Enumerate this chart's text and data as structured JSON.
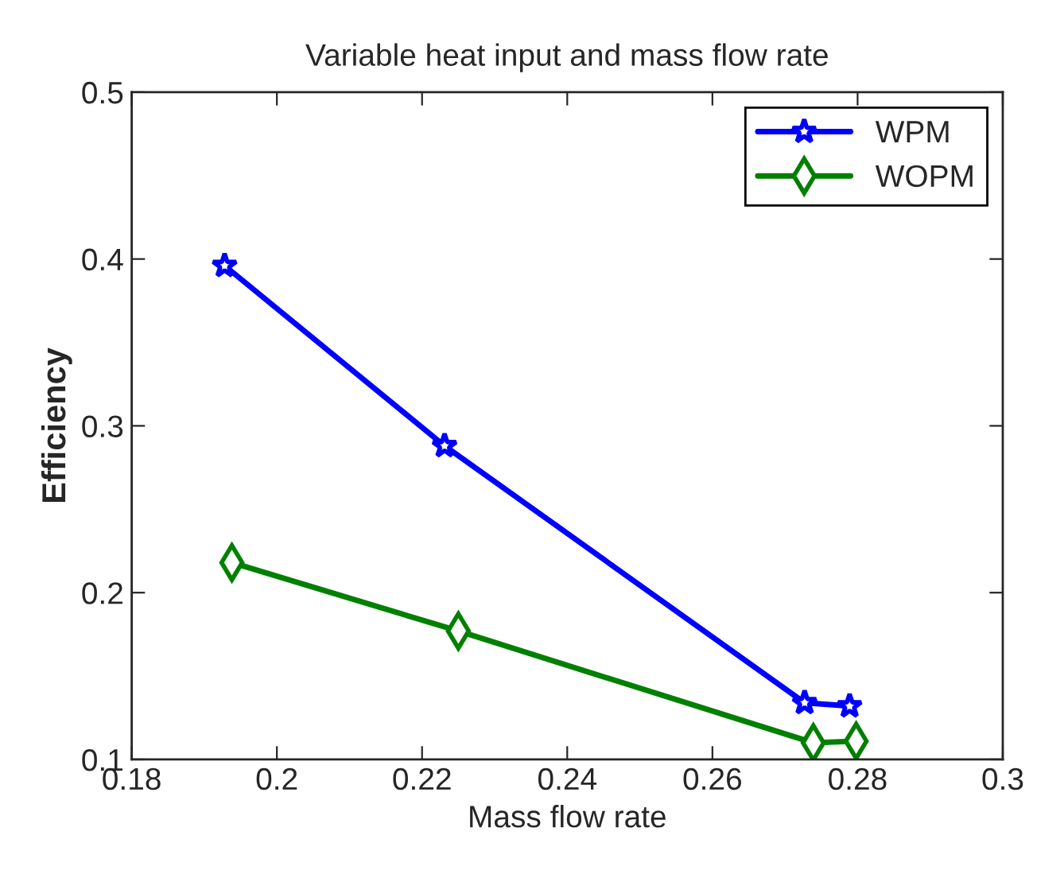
{
  "chart_data": {
    "type": "line",
    "title": "Variable heat input and mass flow rate",
    "xlabel": "Mass flow rate",
    "ylabel": "Efficiency",
    "xlim": [
      0.18,
      0.3
    ],
    "xticks": [
      0.18,
      0.2,
      0.22,
      0.24,
      0.26,
      0.28,
      0.3
    ],
    "ylim": [
      0.1,
      0.5
    ],
    "yticks": [
      0.1,
      0.2,
      0.3,
      0.4,
      0.5
    ],
    "grid": false,
    "legend": "top right",
    "line_style": "solid",
    "series": [
      {
        "name": "WPM",
        "color": "#0000ff",
        "marker": "star",
        "x": [
          0.1928,
          0.2231,
          0.2727,
          0.2789
        ],
        "values": [
          0.396,
          0.288,
          0.134,
          0.132
        ]
      },
      {
        "name": "WOPM",
        "color": "#008000",
        "marker": "diamond",
        "x": [
          0.1938,
          0.225,
          0.2739,
          0.2798
        ],
        "values": [
          0.218,
          0.177,
          0.11,
          0.111
        ]
      }
    ]
  }
}
